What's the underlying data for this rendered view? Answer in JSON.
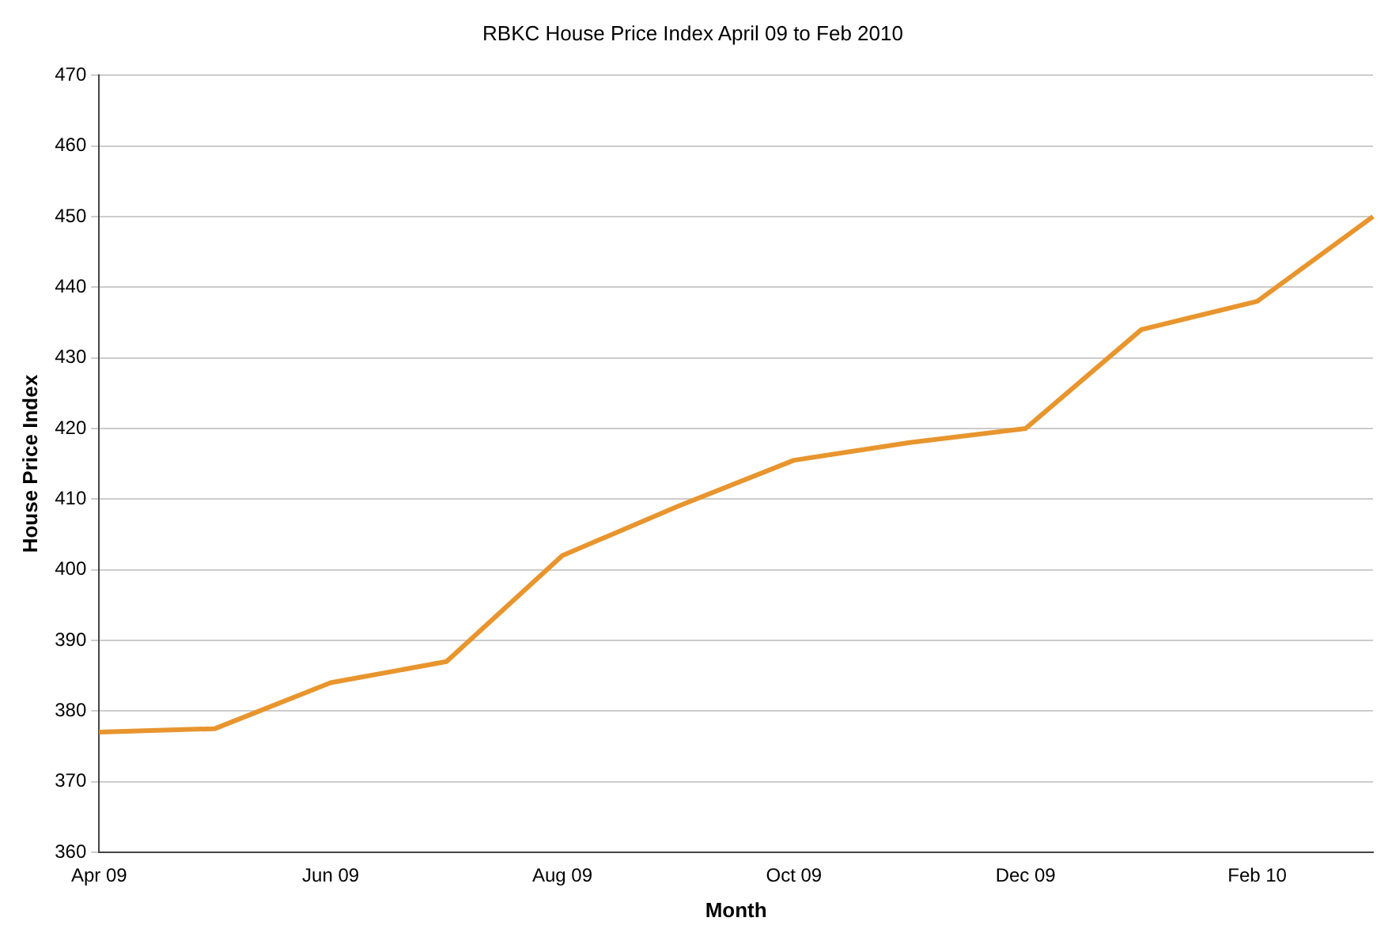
{
  "chart_data": {
    "type": "line",
    "title": "RBKC House Price Index April 09 to Feb 2010",
    "xlabel": "Month",
    "ylabel": "House Price Index",
    "categories": [
      "Apr 09",
      null,
      "Jun 09",
      null,
      "Aug 09",
      null,
      "Oct 09",
      null,
      "Dec 09",
      null,
      "Feb 10",
      null
    ],
    "series": [
      {
        "color": "#e8952e",
        "values": [
          377,
          377.5,
          384,
          387,
          402,
          409,
          415.5,
          418,
          420,
          434,
          438,
          450
        ]
      }
    ],
    "ylim": [
      360,
      470
    ],
    "yticks": [
      360,
      370,
      380,
      390,
      400,
      410,
      420,
      430,
      440,
      450,
      460,
      470
    ],
    "grid": "y",
    "legend": false,
    "marker": "none",
    "line_style": "solid"
  }
}
